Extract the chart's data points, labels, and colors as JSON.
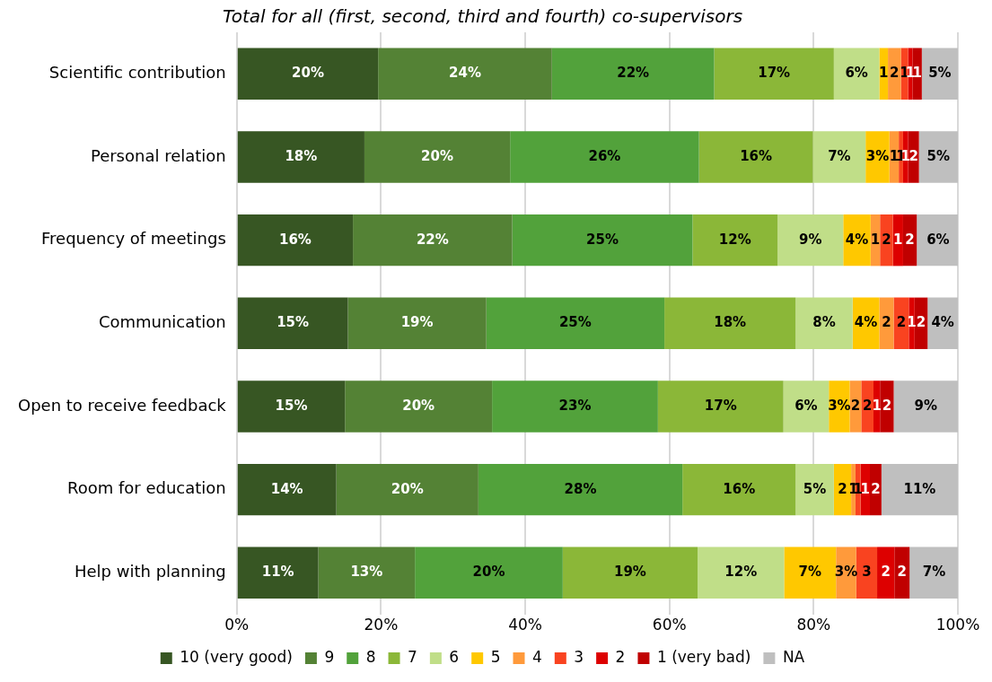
{
  "chart_data": {
    "type": "bar",
    "orientation": "horizontal",
    "stacked": true,
    "title": "Total for all (first, second, third and fourth) co-supervisors",
    "categories": [
      "Scientific contribution",
      "Personal relation",
      "Frequency of meetings",
      "Communication",
      "Open to receive feedback",
      "Room for education",
      "Help with planning"
    ],
    "series": [
      {
        "name": "10 (very good)",
        "color": "#375623",
        "values": [
          19.6,
          17.7,
          16.1,
          15.4,
          15.0,
          13.8,
          11.3
        ],
        "value_labels": [
          "20%",
          "18%",
          "16%",
          "15%",
          "15%",
          "14%",
          "11%"
        ]
      },
      {
        "name": "9",
        "color": "#548235",
        "values": [
          24.1,
          20.2,
          22.1,
          19.2,
          20.4,
          19.7,
          13.4
        ],
        "value_labels": [
          "24%",
          "20%",
          "22%",
          "19%",
          "20%",
          "20%",
          "13%"
        ]
      },
      {
        "name": "8",
        "color": "#52a23b",
        "values": [
          22.5,
          26.2,
          25.0,
          24.7,
          23.0,
          28.3,
          20.5
        ],
        "value_labels": [
          "22%",
          "26%",
          "25%",
          "25%",
          "23%",
          "28%",
          "20%"
        ]
      },
      {
        "name": "7",
        "color": "#8bb738",
        "values": [
          16.6,
          15.8,
          11.8,
          18.2,
          17.4,
          15.7,
          18.7
        ],
        "value_labels": [
          "17%",
          "16%",
          "12%",
          "18%",
          "17%",
          "16%",
          "19%"
        ]
      },
      {
        "name": "6",
        "color": "#c0de88",
        "values": [
          6.3,
          7.3,
          9.1,
          7.9,
          6.3,
          5.3,
          12.0
        ],
        "value_labels": [
          "6%",
          "7%",
          "9%",
          "8%",
          "6%",
          "5%",
          "12%"
        ]
      },
      {
        "name": "5",
        "color": "#ffc800",
        "values": [
          1.2,
          3.3,
          3.8,
          3.7,
          2.9,
          2.4,
          7.2
        ],
        "value_labels": [
          "1",
          "3%",
          "4%",
          "4%",
          "3%",
          "2",
          "7%"
        ]
      },
      {
        "name": "4",
        "color": "#ff9a3b",
        "values": [
          1.8,
          1.3,
          1.3,
          2.0,
          1.6,
          0.6,
          2.8
        ],
        "value_labels": [
          "2",
          "1",
          "1",
          "2",
          "2",
          "1",
          "3%"
        ]
      },
      {
        "name": "3",
        "color": "#f94320",
        "values": [
          1.0,
          0.6,
          1.8,
          2.1,
          1.7,
          0.7,
          2.9
        ],
        "value_labels": [
          "1",
          "1",
          "2",
          "2",
          "2",
          "1",
          "3"
        ]
      },
      {
        "name": "2",
        "color": "#dd0000",
        "values": [
          0.6,
          0.7,
          1.4,
          0.8,
          0.9,
          1.3,
          2.4
        ],
        "value_labels": [
          "1",
          "1",
          "1",
          "1",
          "1",
          "1",
          "2"
        ]
      },
      {
        "name": "1 (very bad)",
        "color": "#c00000",
        "values": [
          1.3,
          1.5,
          1.9,
          1.8,
          1.9,
          1.6,
          2.1
        ],
        "value_labels": [
          "1",
          "2",
          "2",
          "2",
          "2",
          "2",
          "2"
        ]
      },
      {
        "name": "NA",
        "color": "#bfbfbf",
        "values": [
          5.0,
          5.4,
          5.9,
          4.2,
          8.9,
          10.6,
          6.8
        ],
        "value_labels": [
          "5%",
          "5%",
          "6%",
          "4%",
          "9%",
          "11%",
          "7%"
        ]
      }
    ],
    "xlim": [
      0,
      100
    ],
    "xticks": [
      {
        "value": 0,
        "label": "0%"
      },
      {
        "value": 20,
        "label": "20%"
      },
      {
        "value": 40,
        "label": "40%"
      },
      {
        "value": 60,
        "label": "60%"
      },
      {
        "value": 80,
        "label": "80%"
      },
      {
        "value": 100,
        "label": "100%"
      }
    ],
    "grid": "x",
    "legend": "bottom"
  }
}
